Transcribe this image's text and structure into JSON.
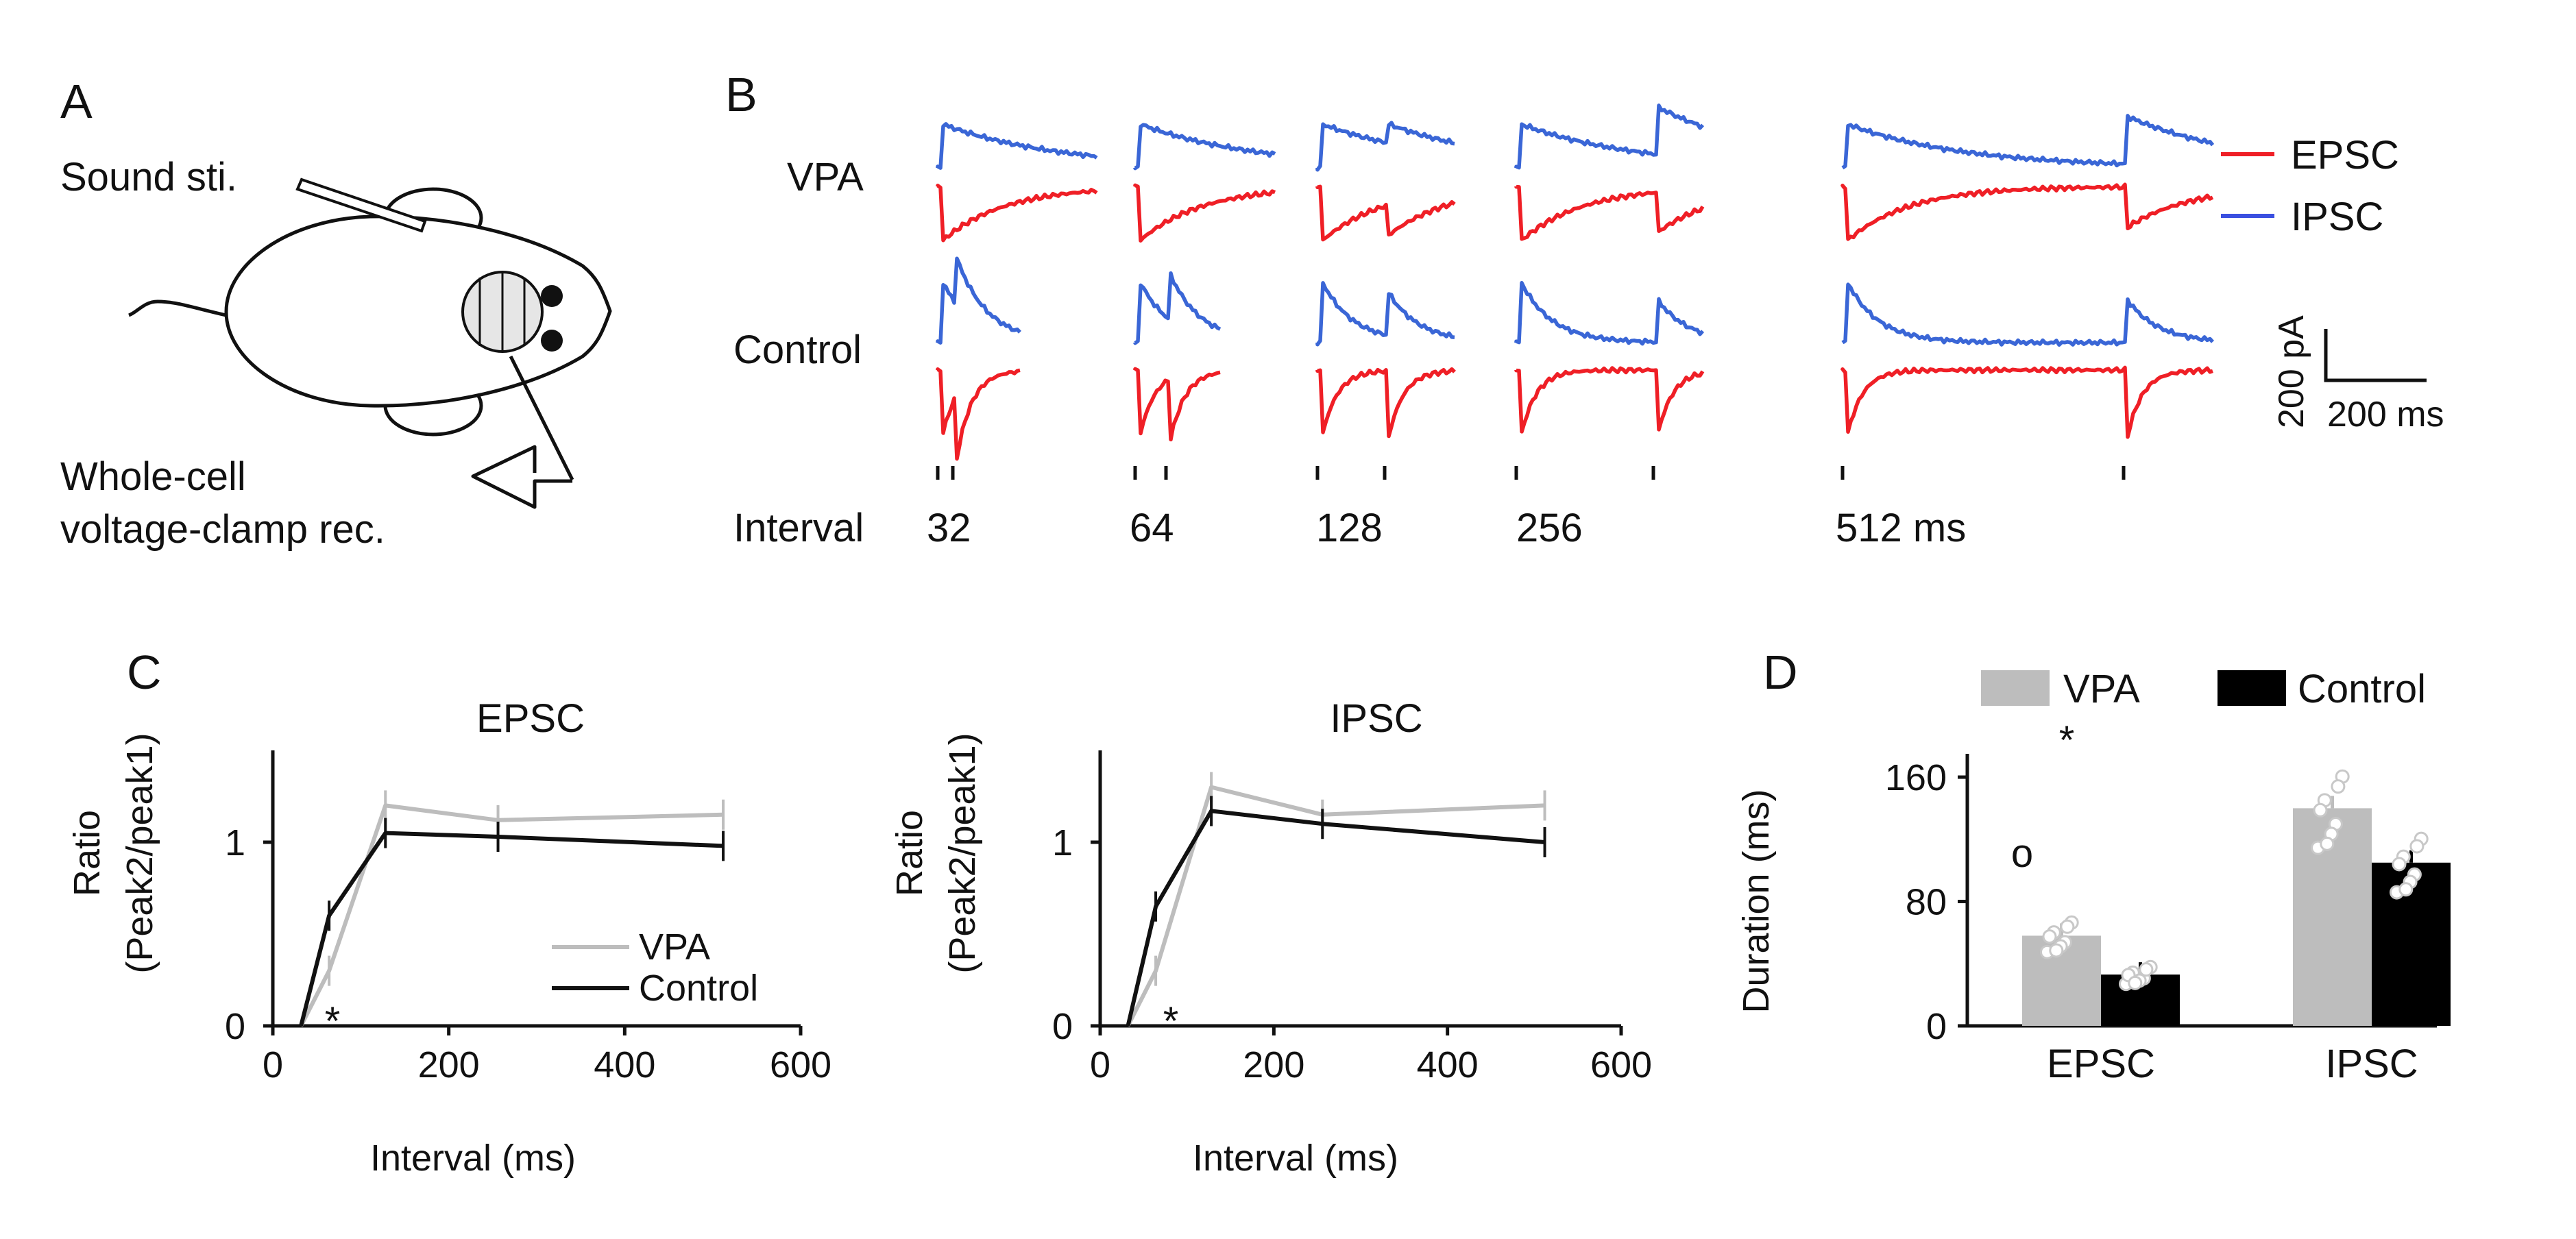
{
  "panels": {
    "a": "A",
    "b": "B",
    "c": "C",
    "d": "D"
  },
  "panel_a": {
    "sound_label": "Sound sti.",
    "rec_label_line1": "Whole-cell",
    "rec_label_line2": "voltage-clamp rec."
  },
  "panel_b": {
    "row_labels": {
      "vpa": "VPA",
      "control": "Control"
    },
    "interval_label": "Interval",
    "intervals": [
      "32",
      "64",
      "128",
      "256",
      "512 ms"
    ],
    "legend": {
      "epsc": "EPSC",
      "ipsc": "IPSC"
    },
    "scale_bar": {
      "y": "200 pA",
      "x": "200 ms"
    },
    "colors": {
      "epsc": "#ef1f26",
      "ipsc": "#3a66d6"
    }
  },
  "chart_data": [
    {
      "type": "line",
      "title": "EPSC",
      "xlabel": "Interval (ms)",
      "ylabel": "Ratio (Peak2/peak1)",
      "ylabel_line1": "Ratio",
      "ylabel_line2": "(Peak2/peak1)",
      "x": [
        32,
        64,
        128,
        256,
        512
      ],
      "xticks": [
        0,
        200,
        400,
        600
      ],
      "yticks": [
        0,
        1
      ],
      "xlim": [
        0,
        600
      ],
      "ylim": [
        0,
        1.5
      ],
      "series": [
        {
          "name": "VPA",
          "color": "#bdbdbd",
          "values": [
            0.0,
            0.3,
            1.2,
            1.12,
            1.15
          ]
        },
        {
          "name": "Control",
          "color": "#111111",
          "values": [
            0.0,
            0.6,
            1.05,
            1.03,
            0.98
          ]
        }
      ],
      "annotation": "*",
      "legend": [
        "VPA",
        "Control"
      ]
    },
    {
      "type": "line",
      "title": "IPSC",
      "xlabel": "Interval (ms)",
      "ylabel": "Ratio (Peak2/peak1)",
      "ylabel_line1": "Ratio",
      "ylabel_line2": "(Peak2/peak1)",
      "x": [
        32,
        64,
        128,
        256,
        512
      ],
      "xticks": [
        0,
        200,
        400,
        600
      ],
      "yticks": [
        0,
        1
      ],
      "xlim": [
        0,
        600
      ],
      "ylim": [
        0,
        1.5
      ],
      "series": [
        {
          "name": "VPA",
          "color": "#bdbdbd",
          "values": [
            0.0,
            0.3,
            1.3,
            1.15,
            1.2
          ]
        },
        {
          "name": "Control",
          "color": "#111111",
          "values": [
            0.0,
            0.65,
            1.17,
            1.1,
            1.0
          ]
        }
      ],
      "annotation": "*"
    },
    {
      "type": "bar",
      "ylabel": "Duration (ms)",
      "categories": [
        "EPSC",
        "IPSC"
      ],
      "yticks": [
        0,
        80,
        160
      ],
      "ylim": [
        0,
        175
      ],
      "series": [
        {
          "name": "VPA",
          "color": "#bdbdbd",
          "values": [
            58,
            140
          ]
        },
        {
          "name": "Control",
          "color": "#000000",
          "values": [
            33,
            105
          ]
        }
      ],
      "legend": [
        "VPA",
        "Control"
      ],
      "annotation": "*",
      "outlier_marker": "o"
    }
  ]
}
